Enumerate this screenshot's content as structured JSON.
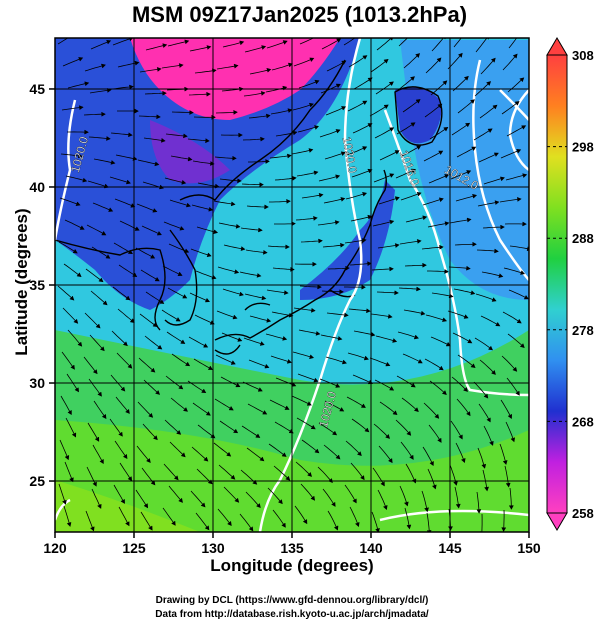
{
  "title": "MSM 09Z17Jan2025 (1013.2hPa)",
  "xlabel": "Longitude (degrees)",
  "ylabel": "Latitude  (degrees)",
  "credits": {
    "line1": "Drawing by DCL (https://www.gfd-dennou.org/library/dcl/)",
    "line2": "Data from http://database.rish.kyoto-u.ac.jp/arch/jmadata/"
  },
  "chart_data": {
    "type": "heatmap",
    "xlim": [
      120,
      150
    ],
    "ylim": [
      22.4,
      47.6
    ],
    "x_ticks": [
      {
        "value": 120,
        "label": "120"
      },
      {
        "value": 125,
        "label": "125"
      },
      {
        "value": 130,
        "label": "130"
      },
      {
        "value": 135,
        "label": "135"
      },
      {
        "value": 140,
        "label": "140"
      },
      {
        "value": 145,
        "label": "145"
      },
      {
        "value": 150,
        "label": "150"
      }
    ],
    "y_ticks": [
      {
        "value": 25,
        "label": "25"
      },
      {
        "value": 30,
        "label": "30"
      },
      {
        "value": 35,
        "label": "35"
      },
      {
        "value": 40,
        "label": "40"
      },
      {
        "value": 45,
        "label": "45"
      }
    ],
    "grid": true,
    "colorbar": {
      "range": [
        258,
        308
      ],
      "ticks": [
        {
          "value": 258,
          "label": "258"
        },
        {
          "value": 268,
          "label": "268"
        },
        {
          "value": 278,
          "label": "278"
        },
        {
          "value": 288,
          "label": "288"
        },
        {
          "value": 298,
          "label": "298"
        },
        {
          "value": 308,
          "label": "308"
        }
      ],
      "stops": [
        "#ff40c0",
        "#c020e0",
        "#2030d0",
        "#3090f0",
        "#30d0d0",
        "#20d040",
        "#80e020",
        "#e0e020",
        "#ff8020",
        "#ff4040"
      ]
    },
    "isobar_labels": [
      {
        "label": "1020.0",
        "lon": 121.8,
        "lat": 41.6,
        "angle": -75
      },
      {
        "label": "1020.0",
        "lon": 138.4,
        "lat": 41.6,
        "angle": 80
      },
      {
        "label": "1016.0",
        "lon": 142.2,
        "lat": 40.9,
        "angle": 70
      },
      {
        "label": "1012.0",
        "lon": 145.6,
        "lat": 40.3,
        "angle": 30
      },
      {
        "label": "1020.0",
        "lon": 137.5,
        "lat": 28.6,
        "angle": -75
      }
    ]
  }
}
